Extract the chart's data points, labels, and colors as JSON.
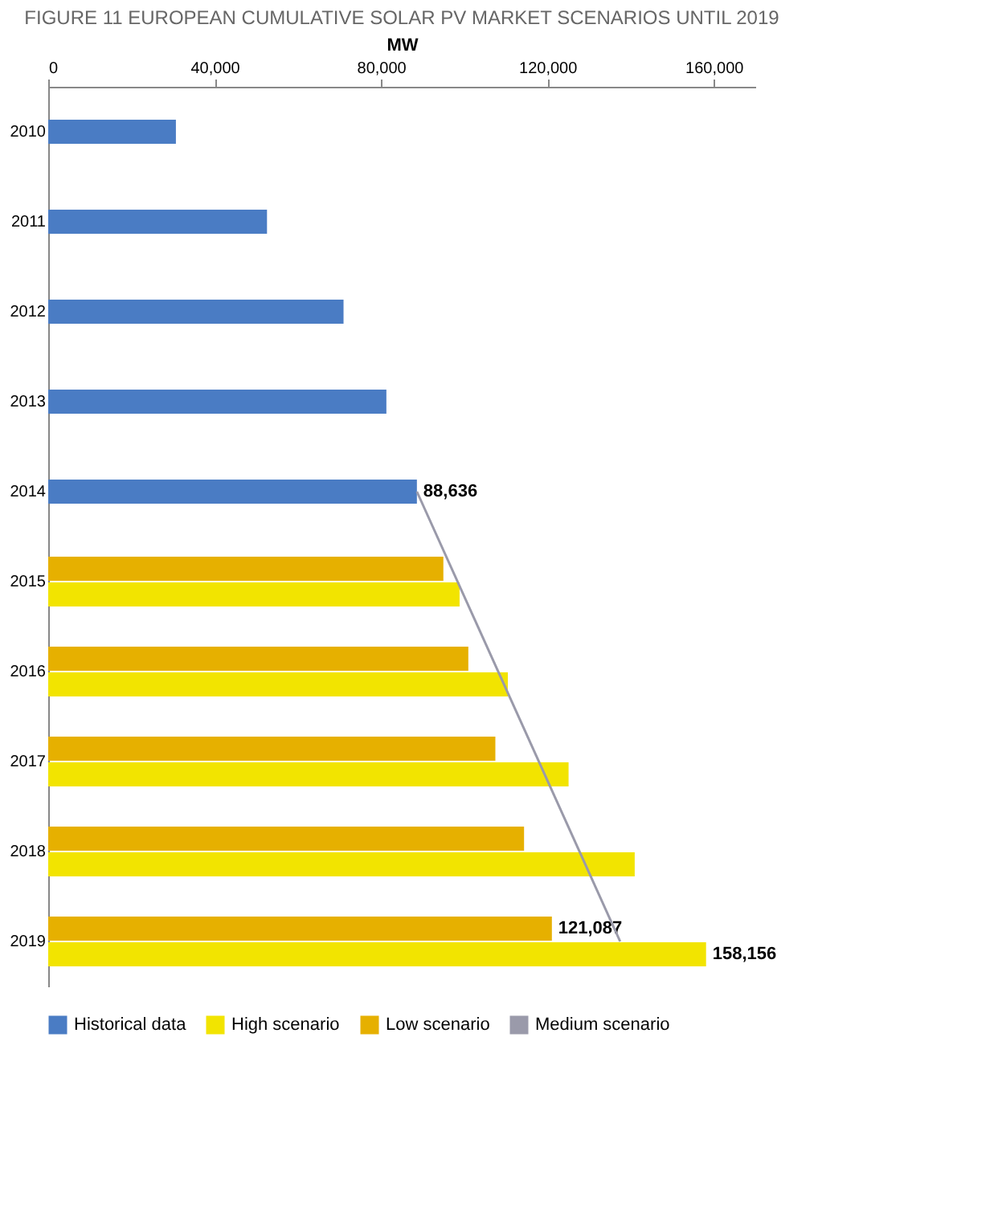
{
  "chart_data": {
    "type": "bar",
    "orientation": "horizontal",
    "title": "FIGURE 11 EUROPEAN CUMULATIVE SOLAR PV MARKET SCENARIOS UNTIL 2019",
    "xlabel": "MW",
    "categories": [
      "2010",
      "2011",
      "2012",
      "2013",
      "2014",
      "2015",
      "2016",
      "2017",
      "2018",
      "2019"
    ],
    "series": [
      {
        "name": "Historical data",
        "color": "#4a7cc4",
        "values": [
          30700,
          52600,
          71000,
          81300,
          88636,
          null,
          null,
          null,
          null,
          null
        ],
        "value_labels": [
          null,
          null,
          null,
          null,
          "88,636",
          null,
          null,
          null,
          null,
          null
        ]
      },
      {
        "name": "High scenario",
        "color": "#f2e400",
        "values": [
          null,
          null,
          null,
          null,
          null,
          98900,
          110500,
          125100,
          141000,
          158156
        ],
        "value_labels": [
          null,
          null,
          null,
          null,
          null,
          null,
          null,
          null,
          null,
          "158,156"
        ]
      },
      {
        "name": "Low scenario",
        "color": "#e6b000",
        "values": [
          null,
          null,
          null,
          null,
          null,
          95000,
          101000,
          107500,
          114400,
          121087
        ],
        "value_labels": [
          null,
          null,
          null,
          null,
          null,
          null,
          null,
          null,
          null,
          "121,087"
        ]
      },
      {
        "name": "Medium scenario",
        "type": "line",
        "color": "#9a9aaa",
        "values": [
          null,
          null,
          null,
          null,
          88636,
          null,
          null,
          null,
          null,
          137500
        ]
      }
    ],
    "xlim": [
      0,
      170000
    ],
    "xticks": [
      0,
      {
        "value": 40000,
        "label": "40,000"
      },
      {
        "value": 80000,
        "label": "80,000"
      },
      {
        "value": 120000,
        "label": "120,000"
      },
      {
        "value": 160000,
        "label": "160,000"
      }
    ],
    "grid": false,
    "legend": "bottom"
  }
}
